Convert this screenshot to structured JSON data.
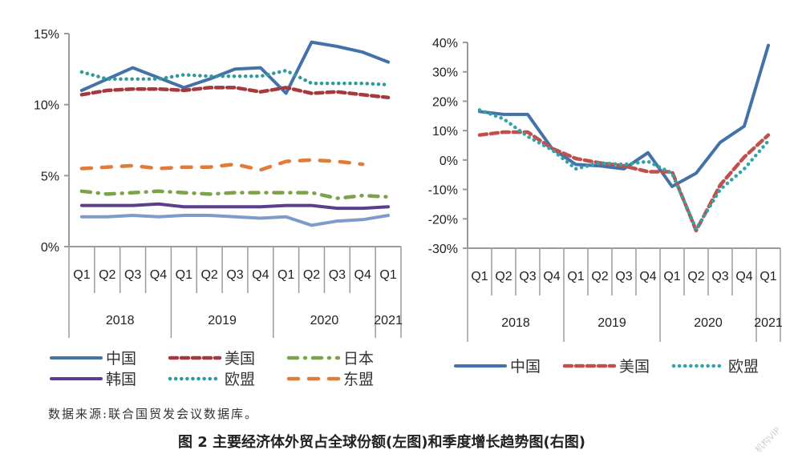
{
  "chart_data": [
    {
      "type": "line",
      "title": "",
      "xlabel": "",
      "ylabel": "",
      "ylim": [
        0,
        15
      ],
      "yticks": [
        "0%",
        "5%",
        "10%",
        "15%"
      ],
      "ytick_values": [
        0,
        5,
        10,
        15
      ],
      "categories": [
        "Q1",
        "Q2",
        "Q3",
        "Q4",
        "Q1",
        "Q2",
        "Q3",
        "Q4",
        "Q1",
        "Q2",
        "Q3",
        "Q4",
        "Q1"
      ],
      "year_groups": [
        {
          "label": "2018",
          "count": 4
        },
        {
          "label": "2019",
          "count": 4
        },
        {
          "label": "2020",
          "count": 4
        },
        {
          "label": "2021",
          "count": 1
        }
      ],
      "grid": false,
      "series": [
        {
          "name": "中国",
          "color": "#4472a8",
          "style": "solid",
          "in_legend": true,
          "values": [
            11.0,
            11.8,
            12.6,
            11.9,
            11.2,
            11.8,
            12.5,
            12.6,
            10.8,
            14.4,
            14.1,
            13.7,
            13.0
          ]
        },
        {
          "name": "美国",
          "color": "#a6393b",
          "style": "dash",
          "in_legend": true,
          "values": [
            10.7,
            11.0,
            11.1,
            11.1,
            11.0,
            11.2,
            11.2,
            10.9,
            11.2,
            10.8,
            10.9,
            10.7,
            10.5
          ]
        },
        {
          "name": "日本",
          "color": "#7aa34a",
          "style": "dashdot",
          "in_legend": true,
          "values": [
            3.9,
            3.7,
            3.8,
            3.9,
            3.8,
            3.7,
            3.8,
            3.8,
            3.8,
            3.8,
            3.4,
            3.6,
            3.5
          ]
        },
        {
          "name": "韩国",
          "color": "#5b3f8c",
          "style": "solid",
          "in_legend": true,
          "values": [
            2.9,
            2.9,
            2.9,
            3.0,
            2.8,
            2.8,
            2.8,
            2.8,
            2.9,
            2.9,
            2.7,
            2.7,
            2.8
          ]
        },
        {
          "name": "欧盟",
          "color": "#2e9a9c",
          "style": "dot",
          "in_legend": true,
          "values": [
            12.3,
            11.8,
            11.8,
            11.8,
            12.1,
            12.0,
            12.0,
            12.0,
            12.4,
            11.5,
            11.5,
            11.5,
            11.4
          ]
        },
        {
          "name": "东盟",
          "color": "#e07b39",
          "style": "longdash",
          "in_legend": true,
          "values": [
            5.5,
            5.6,
            5.7,
            5.5,
            5.6,
            5.6,
            5.8,
            5.4,
            6.0,
            6.1,
            6.0,
            5.8,
            null
          ]
        },
        {
          "name": "",
          "color": "#7f9cc8",
          "style": "solid",
          "in_legend": false,
          "values": [
            2.1,
            2.1,
            2.2,
            2.1,
            2.2,
            2.2,
            2.1,
            2.0,
            2.1,
            1.5,
            1.8,
            1.9,
            2.2
          ]
        }
      ],
      "legend": {
        "placement": "bottom",
        "order": [
          "中国",
          "美国",
          "日本",
          "韩国",
          "欧盟",
          "东盟"
        ]
      }
    },
    {
      "type": "line",
      "title": "",
      "xlabel": "",
      "ylabel": "",
      "ylim": [
        -30,
        40
      ],
      "yticks": [
        "-30%",
        "-20%",
        "-10%",
        "0%",
        "10%",
        "20%",
        "30%",
        "40%"
      ],
      "ytick_values": [
        -30,
        -20,
        -10,
        0,
        10,
        20,
        30,
        40
      ],
      "categories": [
        "Q1",
        "Q2",
        "Q3",
        "Q4",
        "Q1",
        "Q2",
        "Q3",
        "Q4",
        "Q1",
        "Q2",
        "Q3",
        "Q4",
        "Q1"
      ],
      "year_groups": [
        {
          "label": "2018",
          "count": 4
        },
        {
          "label": "2019",
          "count": 4
        },
        {
          "label": "2020",
          "count": 4
        },
        {
          "label": "2021",
          "count": 1
        }
      ],
      "grid": false,
      "series": [
        {
          "name": "中国",
          "color": "#4472a8",
          "style": "solid",
          "values": [
            16.5,
            15.5,
            15.5,
            4.0,
            -1.5,
            -2.0,
            -3.0,
            2.5,
            -9.0,
            -4.5,
            6.0,
            11.5,
            39.0
          ]
        },
        {
          "name": "美国",
          "color": "#c0504d",
          "style": "dash",
          "values": [
            8.5,
            9.5,
            9.5,
            4.0,
            0.5,
            -1.0,
            -2.0,
            -4.0,
            -4.0,
            -24.0,
            -8.5,
            1.0,
            8.5
          ]
        },
        {
          "name": "欧盟",
          "color": "#31a3a8",
          "style": "dot",
          "values": [
            17.0,
            14.0,
            8.0,
            3.5,
            -3.0,
            -1.0,
            -1.5,
            -0.5,
            -4.5,
            -23.5,
            -10.0,
            -3.0,
            6.5
          ]
        }
      ],
      "legend": {
        "placement": "bottom",
        "order": [
          "中国",
          "美国",
          "欧盟"
        ]
      }
    }
  ],
  "source_note": "数据来源:联合国贸发会议数据库。",
  "figure_caption": "图 2   主要经济体外贸占全球份额(左图)和季度增长趋势图(右图)",
  "watermark": "机构VIP"
}
